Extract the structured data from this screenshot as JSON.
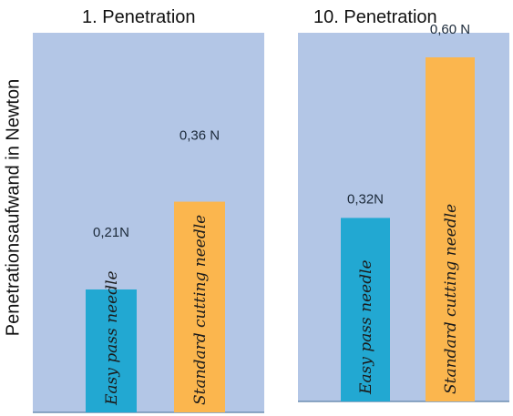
{
  "y_axis_label": "Penetrationsaufwand in Newton",
  "colors": {
    "panel_bg": "#b3c6e6",
    "bar_easy": "#22a8d2",
    "bar_standard": "#fbb64e",
    "baseline": "#6f8fb4"
  },
  "chart_data": [
    {
      "type": "bar",
      "title": "1. Penetration",
      "categories": [
        "Easy pass needle",
        "Standard cutting needle"
      ],
      "values": [
        0.21,
        0.36
      ],
      "value_labels": [
        "0,21N",
        "0,36 N"
      ],
      "ylabel": "Penetrationsaufwand in Newton",
      "ylim": [
        0,
        0.7
      ],
      "grid": false
    },
    {
      "type": "bar",
      "title": "10. Penetration",
      "categories": [
        "Easy pass needle",
        "Standard cutting needle"
      ],
      "values": [
        0.32,
        0.6
      ],
      "value_labels": [
        "0,32N",
        "0,60 N"
      ],
      "ylim": [
        0,
        0.7
      ],
      "grid": false
    }
  ]
}
